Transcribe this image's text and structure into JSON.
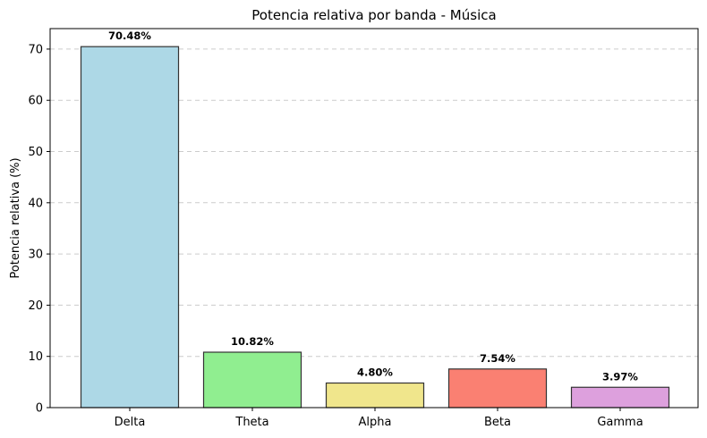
{
  "chart_data": {
    "type": "bar",
    "title": "Potencia relativa por banda - Música",
    "xlabel": "",
    "ylabel": "Potencia relativa (%)",
    "categories": [
      "Delta",
      "Theta",
      "Alpha",
      "Beta",
      "Gamma"
    ],
    "values": [
      70.48,
      10.82,
      4.8,
      7.54,
      3.97
    ],
    "data_labels": [
      "70.48%",
      "10.82%",
      "4.80%",
      "7.54%",
      "3.97%"
    ],
    "colors": [
      "#add8e6",
      "#90ee90",
      "#f0e68c",
      "#fa8072",
      "#dda0dd"
    ],
    "bar_edge_color": "#333333",
    "ylim": [
      0,
      74
    ],
    "yticks": [
      0,
      10,
      20,
      30,
      40,
      50,
      60,
      70
    ],
    "grid": "y-dashed",
    "legend": "none"
  }
}
